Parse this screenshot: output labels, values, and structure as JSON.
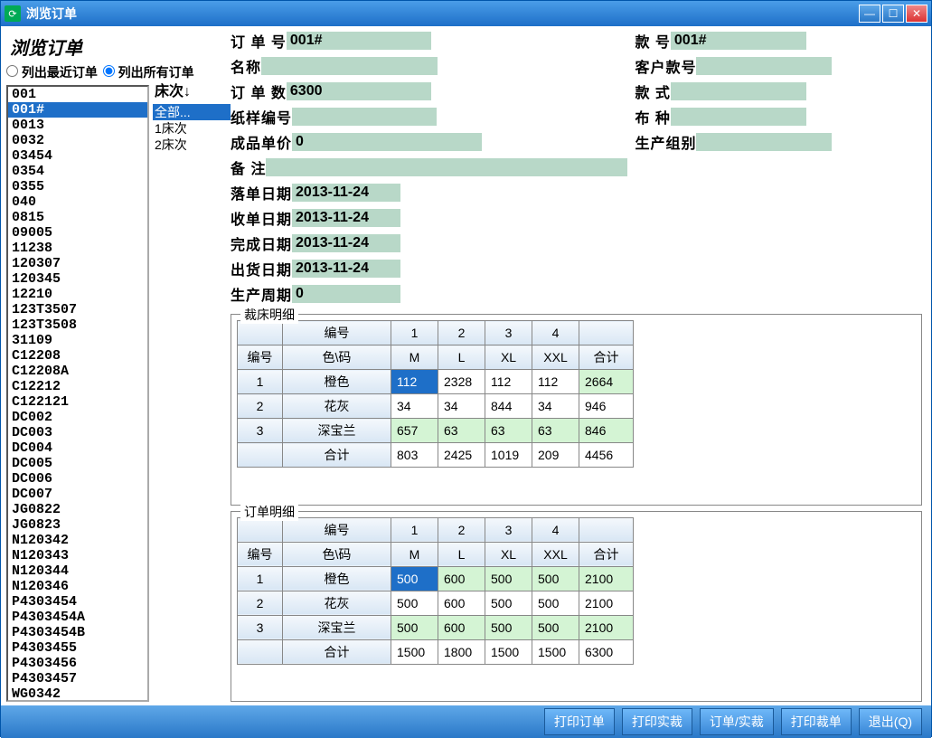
{
  "window": {
    "title": "浏览订单"
  },
  "header": {
    "page_title": "浏览订单",
    "radio_recent": "列出最近订单",
    "radio_all": "列出所有订单",
    "selected_radio": "all"
  },
  "orders": {
    "items": [
      "001",
      "001#",
      "0013",
      "0032",
      "03454",
      "0354",
      "0355",
      "040",
      "0815",
      "09005",
      "11238",
      "120307",
      "120345",
      "12210",
      "123T3507",
      "123T3508",
      "31109",
      "C12208",
      "C12208A",
      "C12212",
      "C122121",
      "DC002",
      "DC003",
      "DC004",
      "DC005",
      "DC006",
      "DC007",
      "JG0822",
      "JG0823",
      "N120342",
      "N120343",
      "N120344",
      "N120346",
      "P4303454",
      "P4303454A",
      "P4303454B",
      "P4303455",
      "P4303456",
      "P4303457",
      "WG0342"
    ],
    "selected_index": 1
  },
  "beds": {
    "header": "床次↓",
    "items": [
      "全部...",
      "1床次",
      "2床次"
    ],
    "selected_index": 0
  },
  "form": {
    "labels": {
      "order_no": "订 单 号",
      "name": "名称",
      "order_qty": "订 单 数",
      "pattern_no": "纸样编号",
      "unit_price": "成品单价",
      "remark": "备    注",
      "style_no": "款        号",
      "customer_style": "客户款号",
      "style": "款        式",
      "fabric": "布        种",
      "prod_group": "生产组别",
      "drop_date": "落单日期",
      "receive_date": "收单日期",
      "finish_date": "完成日期",
      "ship_date": "出货日期",
      "prod_cycle": "生产周期"
    },
    "values": {
      "order_no": "001#",
      "name": "",
      "order_qty": "6300",
      "pattern_no": "",
      "unit_price": "0",
      "remark": "",
      "style_no": "001#",
      "customer_style": "",
      "style": "",
      "fabric": "",
      "prod_group": "",
      "drop_date": "2013-11-24",
      "receive_date": "2013-11-24",
      "finish_date": "2013-11-24",
      "ship_date": "2013-11-24",
      "prod_cycle": "0"
    }
  },
  "cut_detail": {
    "title": "裁床明细",
    "header1": [
      "",
      "编号",
      "1",
      "2",
      "3",
      "4",
      ""
    ],
    "header2": [
      "编号",
      "色\\码",
      "M",
      "L",
      "XL",
      "XXL",
      "合计"
    ],
    "rows": [
      {
        "no": "1",
        "color": "橙色",
        "cells": [
          "112",
          "2328",
          "112",
          "112",
          "2664"
        ],
        "green": [
          0,
          4
        ],
        "blue": [
          0
        ]
      },
      {
        "no": "2",
        "color": "花灰",
        "cells": [
          "34",
          "34",
          "844",
          "34",
          "946"
        ],
        "green": [],
        "blue": []
      },
      {
        "no": "3",
        "color": "深宝兰",
        "cells": [
          "657",
          "63",
          "63",
          "63",
          "846"
        ],
        "green": [
          0,
          1,
          2,
          3,
          4
        ],
        "blue": []
      }
    ],
    "total_label": "合计",
    "total": [
      "803",
      "2425",
      "1019",
      "209",
      "4456"
    ]
  },
  "order_detail": {
    "title": "订单明细",
    "header1": [
      "",
      "编号",
      "1",
      "2",
      "3",
      "4",
      ""
    ],
    "header2": [
      "编号",
      "色\\码",
      "M",
      "L",
      "XL",
      "XXL",
      "合计"
    ],
    "rows": [
      {
        "no": "1",
        "color": "橙色",
        "cells": [
          "500",
          "600",
          "500",
          "500",
          "2100"
        ],
        "green": [
          0,
          1,
          2,
          3,
          4
        ],
        "blue": [
          0
        ]
      },
      {
        "no": "2",
        "color": "花灰",
        "cells": [
          "500",
          "600",
          "500",
          "500",
          "2100"
        ],
        "green": [],
        "blue": []
      },
      {
        "no": "3",
        "color": "深宝兰",
        "cells": [
          "500",
          "600",
          "500",
          "500",
          "2100"
        ],
        "green": [
          0,
          1,
          2,
          3,
          4
        ],
        "blue": []
      }
    ],
    "total_label": "合计",
    "total": [
      "1500",
      "1800",
      "1500",
      "1500",
      "6300"
    ]
  },
  "buttons": {
    "print_order": "打印订单",
    "print_actual": "打印实裁",
    "order_actual": "订单/实裁",
    "print_cut": "打印裁单",
    "exit": "退出(Q)"
  },
  "colors": {
    "titlebar_start": "#4a9de8",
    "titlebar_end": "#1e6fc8",
    "field_bg": "#b8d8c8",
    "cell_green": "#d4f4d4",
    "cell_blue": "#1e6fc8"
  }
}
